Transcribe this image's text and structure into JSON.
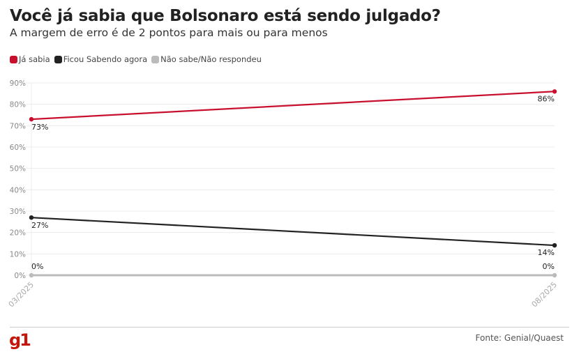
{
  "chart_data": {
    "type": "line",
    "title": "Você já sabia que Bolsonaro está sendo julgado?",
    "subtitle": "A margem de erro é de 2 pontos para mais ou para menos",
    "x": [
      "03/2025",
      "08/2025"
    ],
    "ylim": [
      0,
      90
    ],
    "yticks": [
      "0%",
      "10%",
      "20%",
      "30%",
      "40%",
      "50%",
      "60%",
      "70%",
      "80%",
      "90%"
    ],
    "grid": true,
    "legend_position": "top-left",
    "series": [
      {
        "name": "Já sabia",
        "color": "#c8102e",
        "values": [
          73,
          86
        ],
        "labels": [
          "73%",
          "86%"
        ]
      },
      {
        "name": "Ficou Sabendo agora",
        "color": "#222222",
        "values": [
          27,
          14
        ],
        "labels": [
          "27%",
          "14%"
        ]
      },
      {
        "name": "Não sabe/Não respondeu",
        "color": "#bbbbbb",
        "values": [
          0,
          0
        ],
        "labels": [
          "0%",
          "0%"
        ]
      }
    ]
  },
  "footer": {
    "logo": "g1",
    "source": "Fonte: Genial/Quaest"
  }
}
